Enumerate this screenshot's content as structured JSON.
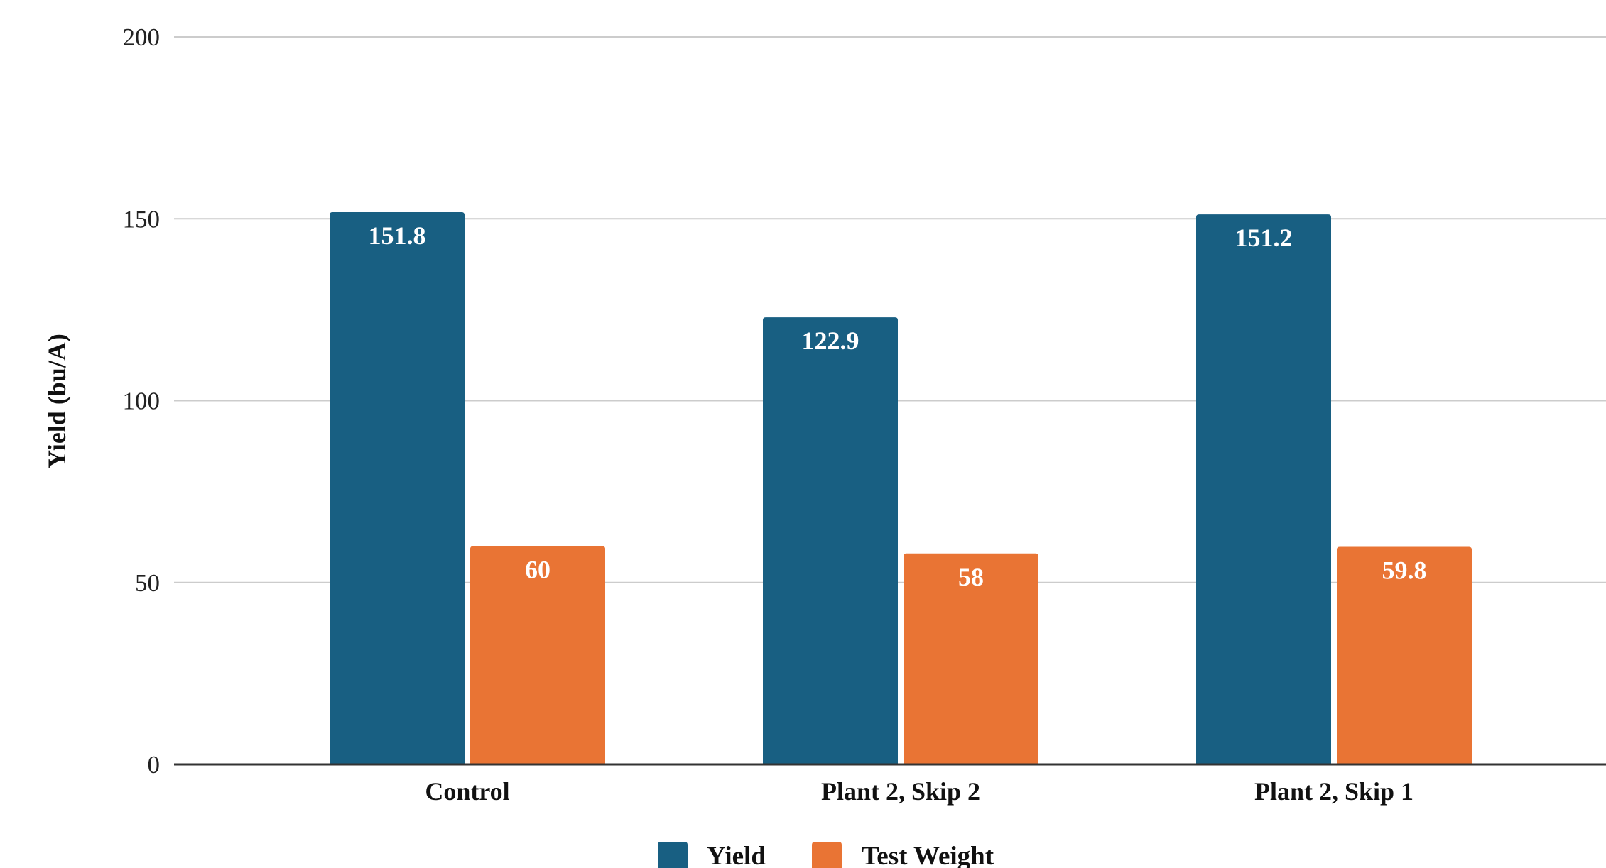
{
  "chart_data": {
    "type": "bar",
    "title": "",
    "xlabel": "",
    "ylabel": "Yield (bu/A)",
    "categories": [
      "Control",
      "Plant 2, Skip 2",
      "Plant 2, Skip 1"
    ],
    "series": [
      {
        "name": "Yield",
        "values": [
          151.8,
          122.9,
          151.2
        ],
        "color": "#185f82"
      },
      {
        "name": "Test Weight",
        "values": [
          60,
          58,
          59.8
        ],
        "color": "#e97434"
      }
    ],
    "ylim": [
      0,
      200
    ],
    "yticks": [
      0,
      50,
      100,
      150,
      200
    ],
    "data_labels": true,
    "grid": true,
    "legend_position": "bottom"
  }
}
